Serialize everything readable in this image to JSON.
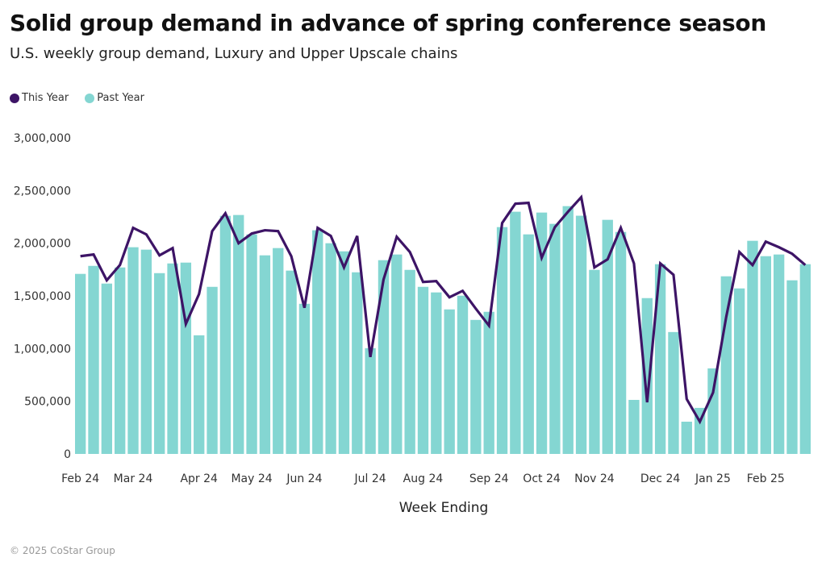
{
  "header": {
    "title": "Solid group demand in advance of spring conference season",
    "subtitle": "U.S. weekly group demand, Luxury and Upper Upscale chains"
  },
  "legend": [
    {
      "label": "This Year",
      "color": "#3d1466"
    },
    {
      "label": "Past Year",
      "color": "#84d6d2"
    }
  ],
  "footer": {
    "copyright": "© 2025 CoStar Group"
  },
  "chart_data": {
    "type": "bar",
    "title": "Solid group demand in advance of spring conference season",
    "subtitle": "U.S. weekly group demand, Luxury and Upper Upscale chains",
    "xlabel": "Week Ending",
    "ylabel": "",
    "ylim": [
      0,
      3000000
    ],
    "yticks": [
      0,
      500000,
      1000000,
      1500000,
      2000000,
      2500000,
      3000000
    ],
    "ytick_labels": [
      "0",
      "500,000",
      "1,000,000",
      "1,500,000",
      "2,000,000",
      "2,500,000",
      "3,000,000"
    ],
    "grid": false,
    "legend_position": "top-left",
    "xtick_labels": [
      {
        "index": 0,
        "label": "Feb 24"
      },
      {
        "index": 4,
        "label": "Mar 24"
      },
      {
        "index": 9,
        "label": "Apr 24"
      },
      {
        "index": 13,
        "label": "May 24"
      },
      {
        "index": 17,
        "label": "Jun 24"
      },
      {
        "index": 22,
        "label": "Jul 24"
      },
      {
        "index": 26,
        "label": "Aug 24"
      },
      {
        "index": 31,
        "label": "Sep 24"
      },
      {
        "index": 35,
        "label": "Oct 24"
      },
      {
        "index": 39,
        "label": "Nov 24"
      },
      {
        "index": 44,
        "label": "Dec 24"
      },
      {
        "index": 48,
        "label": "Jan 25"
      },
      {
        "index": 52,
        "label": "Feb 25"
      }
    ],
    "series": [
      {
        "name": "Past Year",
        "type": "bar",
        "color": "#84d6d2",
        "values": [
          1709000,
          1785000,
          1617000,
          1770000,
          1962000,
          1939000,
          1716000,
          1808000,
          1816000,
          1126000,
          1586000,
          2260000,
          2268000,
          2084000,
          1885000,
          1954000,
          1740000,
          1425000,
          2123000,
          2000000,
          1923000,
          1724000,
          1004000,
          1839000,
          1893000,
          1747000,
          1586000,
          1533000,
          1372000,
          1502000,
          1272000,
          1349000,
          2153000,
          2299000,
          2084000,
          2291000,
          2184000,
          2352000,
          2261000,
          1747000,
          2222000,
          2107000,
          513000,
          1479000,
          1801000,
          1157000,
          306000,
          437000,
          812000,
          1686000,
          1571000,
          2023000,
          1877000,
          1893000,
          1648000,
          1801000
        ]
      },
      {
        "name": "This Year",
        "type": "line",
        "color": "#3d1466",
        "values": [
          1877000,
          1893000,
          1648000,
          1793000,
          2146000,
          2084000,
          1885000,
          1954000,
          1234000,
          1517000,
          2115000,
          2284000,
          2000000,
          2092000,
          2123000,
          2115000,
          1877000,
          1387000,
          2146000,
          2069000,
          1770000,
          2069000,
          920000,
          1655000,
          2061000,
          1916000,
          1632000,
          1640000,
          1487000,
          1548000,
          1379000,
          1218000,
          2192000,
          2375000,
          2383000,
          1862000,
          2153000,
          2299000,
          2437000,
          1770000,
          1847000,
          2146000,
          1808000,
          490000,
          1808000,
          1701000,
          521000,
          306000,
          582000,
          1300000,
          1916000,
          1793000,
          2015000,
          1962000,
          1900000,
          1793000
        ]
      }
    ]
  }
}
